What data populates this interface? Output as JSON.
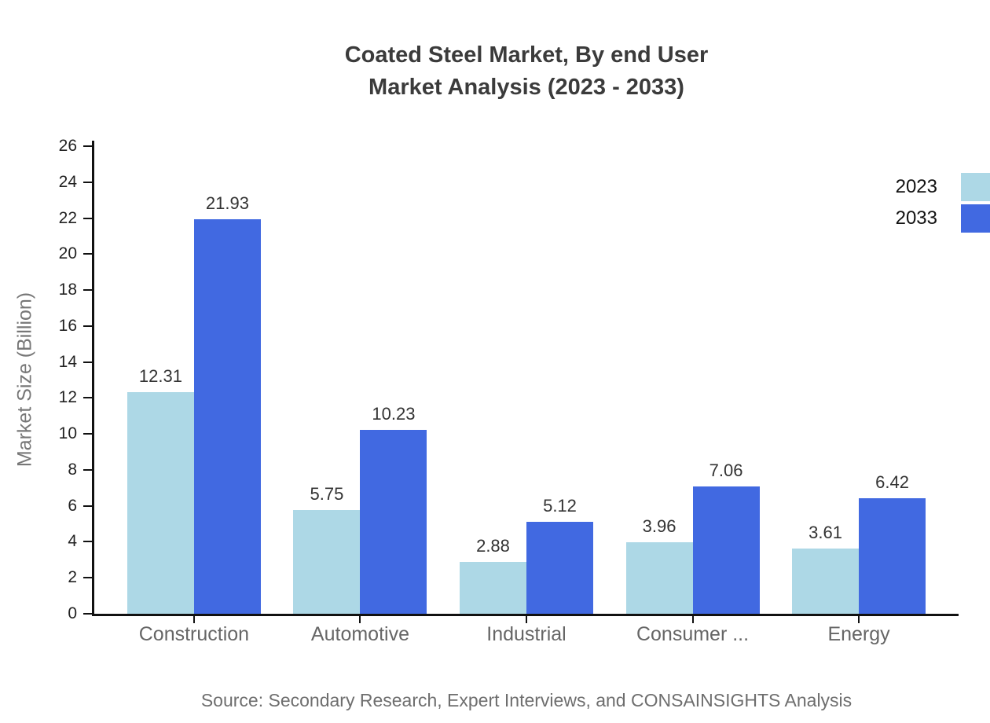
{
  "title": {
    "line1": "Coated Steel Market, By end User",
    "line2": "Market Analysis (2023 - 2033)"
  },
  "source": "Source: Secondary Research, Expert Interviews, and CONSAINSIGHTS Analysis",
  "chart_data": {
    "type": "bar",
    "title": "Coated Steel Market, By end User Market Analysis (2023 - 2033)",
    "categories": [
      "Construction",
      "Automotive",
      "Industrial",
      "Consumer ...",
      "Energy"
    ],
    "series": [
      {
        "name": "2023",
        "color": "#ADD8E6",
        "values": [
          12.31,
          5.75,
          2.88,
          3.96,
          3.61
        ]
      },
      {
        "name": "2033",
        "color": "#4169E1",
        "values": [
          21.93,
          10.23,
          5.12,
          7.06,
          6.42
        ]
      }
    ],
    "xlabel": "",
    "ylabel": "Market Size (Billion)",
    "ylim": [
      0,
      26
    ],
    "ytick_step": 2,
    "grid": false,
    "value_labels": true,
    "legend_position": "top-right"
  },
  "colors": {
    "axis": "#111111",
    "tick_label": "#222222",
    "category_label": "#666666",
    "value_label": "#333333",
    "title": "#3b3b3b",
    "ylabel": "#777777",
    "source": "#6e6e6e"
  }
}
